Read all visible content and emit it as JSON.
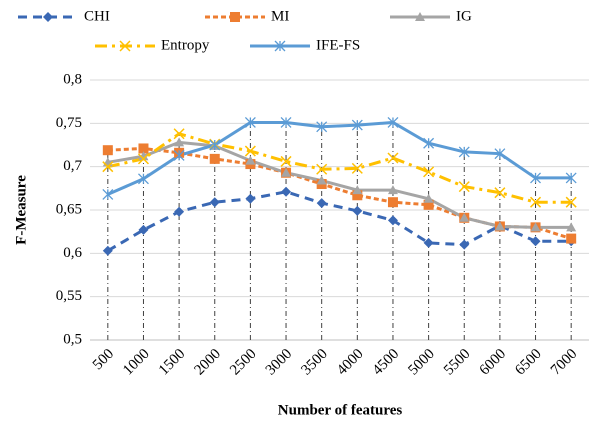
{
  "chart_data": {
    "type": "line",
    "x_label": "Number of features",
    "y_label": "F-Measure",
    "categories": [
      500,
      1000,
      1500,
      2000,
      2500,
      3000,
      3500,
      4000,
      4500,
      5000,
      5500,
      6000,
      6500,
      7000
    ],
    "series": [
      {
        "name": "CHI",
        "color": "#3a68b4",
        "marker": "diamond",
        "dash": "dashed",
        "values": [
          0.603,
          0.627,
          0.648,
          0.659,
          0.663,
          0.671,
          0.658,
          0.649,
          0.638,
          0.612,
          0.61,
          0.632,
          0.614,
          0.614
        ]
      },
      {
        "name": "MI",
        "color": "#ed7d31",
        "marker": "square",
        "dash": "short-dashed",
        "values": [
          0.719,
          0.721,
          0.716,
          0.709,
          0.703,
          0.693,
          0.68,
          0.667,
          0.659,
          0.656,
          0.641,
          0.631,
          0.63,
          0.617
        ]
      },
      {
        "name": "IG",
        "color": "#a5a5a5",
        "marker": "triangle",
        "dash": "solid",
        "values": [
          0.705,
          0.712,
          0.728,
          0.724,
          0.707,
          0.693,
          0.684,
          0.673,
          0.673,
          0.663,
          0.641,
          0.631,
          0.63,
          0.63
        ]
      },
      {
        "name": "Entropy",
        "color": "#ffc000",
        "marker": "x",
        "dash": "dash-dot",
        "values": [
          0.7,
          0.709,
          0.738,
          0.726,
          0.718,
          0.706,
          0.697,
          0.698,
          0.71,
          0.694,
          0.677,
          0.67,
          0.659,
          0.659
        ]
      },
      {
        "name": "IFE-FS",
        "color": "#5b9bd5",
        "marker": "asterisk",
        "dash": "solid",
        "values": [
          0.668,
          0.686,
          0.713,
          0.725,
          0.751,
          0.751,
          0.746,
          0.748,
          0.751,
          0.727,
          0.717,
          0.715,
          0.687,
          0.687
        ]
      }
    ],
    "ylim": [
      0.5,
      0.8
    ],
    "yticks": [
      {
        "value": 0.5,
        "label": "0,5"
      },
      {
        "value": 0.55,
        "label": "0,55"
      },
      {
        "value": 0.6,
        "label": "0,6"
      },
      {
        "value": 0.65,
        "label": "0,65"
      },
      {
        "value": 0.7,
        "label": "0,7"
      },
      {
        "value": 0.75,
        "label": "0,75"
      },
      {
        "value": 0.8,
        "label": "0,8"
      }
    ],
    "grid": true,
    "drop_lines": true,
    "legend": "top"
  }
}
